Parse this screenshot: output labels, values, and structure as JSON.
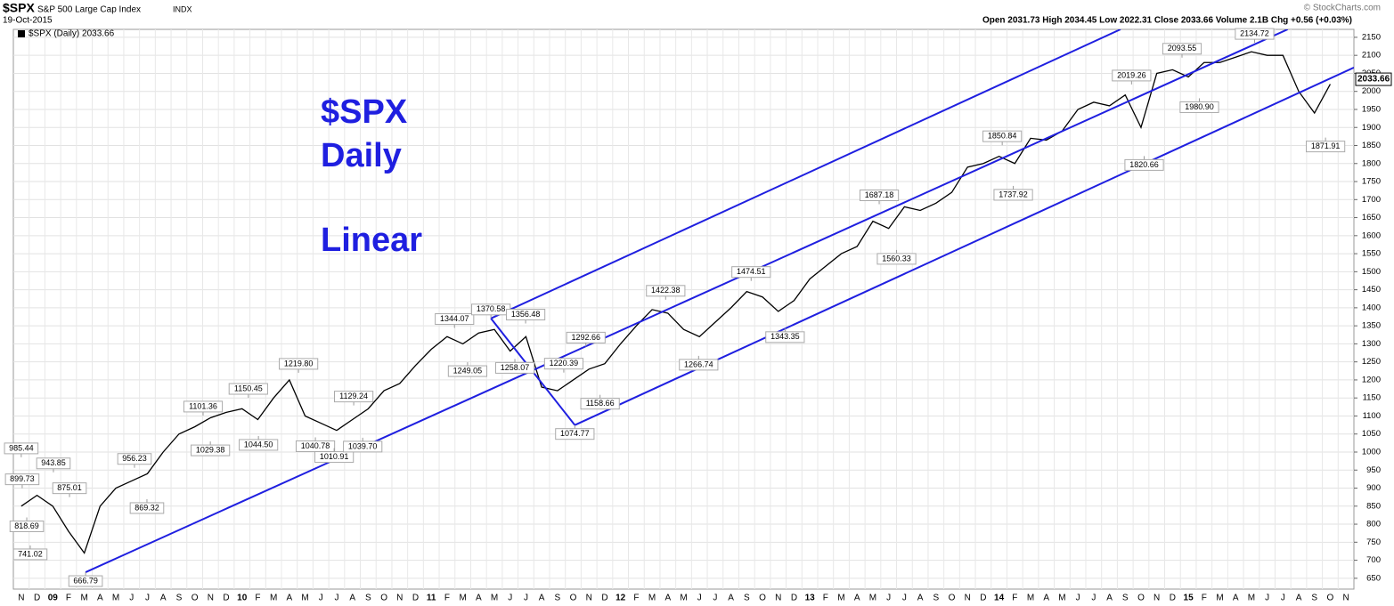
{
  "header": {
    "symbol": "$SPX",
    "name": "S&P 500 Large Cap Index",
    "exchange": "INDX",
    "date": "19-Oct-2015",
    "quote": "Open 2031.73  High 2034.45  Low 2022.31  Close 2033.66  Volume 2.1B  Chg +0.56 (+0.03%)",
    "credit": "© StockCharts.com"
  },
  "chart_data": {
    "type": "line",
    "legend": "$SPX (Daily) 2033.66",
    "last_price": {
      "value": 2033.66,
      "label": "2033.66"
    },
    "notes": [
      "$SPX",
      "Daily",
      "Linear"
    ],
    "categories": [
      "N",
      "D",
      "09",
      "F",
      "M",
      "A",
      "M",
      "J",
      "J",
      "A",
      "S",
      "O",
      "N",
      "D",
      "10",
      "F",
      "M",
      "A",
      "M",
      "J",
      "J",
      "A",
      "S",
      "O",
      "N",
      "D",
      "11",
      "F",
      "M",
      "A",
      "M",
      "J",
      "J",
      "A",
      "S",
      "O",
      "N",
      "D",
      "12",
      "F",
      "M",
      "A",
      "M",
      "J",
      "J",
      "A",
      "S",
      "O",
      "N",
      "D",
      "13",
      "F",
      "M",
      "A",
      "M",
      "J",
      "J",
      "A",
      "S",
      "O",
      "N",
      "D",
      "14",
      "F",
      "M",
      "A",
      "M",
      "J",
      "J",
      "A",
      "S",
      "O",
      "N",
      "D",
      "15",
      "F",
      "M",
      "A",
      "M",
      "J",
      "J",
      "A",
      "S",
      "O",
      "N"
    ],
    "series": [
      {
        "name": "$SPX",
        "color": "#000000",
        "values": [
          850,
          880,
          850,
          780,
          720,
          850,
          900,
          920,
          940,
          1000,
          1050,
          1070,
          1095,
          1110,
          1120,
          1090,
          1150,
          1200,
          1100,
          1080,
          1060,
          1090,
          1120,
          1170,
          1190,
          1240,
          1285,
          1320,
          1300,
          1330,
          1340,
          1280,
          1320,
          1180,
          1170,
          1200,
          1230,
          1245,
          1300,
          1350,
          1395,
          1385,
          1340,
          1320,
          1360,
          1400,
          1445,
          1430,
          1390,
          1420,
          1480,
          1515,
          1550,
          1570,
          1640,
          1620,
          1680,
          1670,
          1690,
          1720,
          1790,
          1800,
          1820,
          1800,
          1870,
          1865,
          1890,
          1950,
          1970,
          1960,
          1990,
          1900,
          2050,
          2060,
          2040,
          2080,
          2080,
          2095,
          2110,
          2100,
          2100,
          2000,
          1940,
          2020,
          null
        ]
      }
    ],
    "annotations": [
      {
        "text": "985.44",
        "x": 0,
        "value": 985.44
      },
      {
        "text": "899.73",
        "x": 0.06,
        "value": 899.73
      },
      {
        "text": "818.69",
        "x": 0.35,
        "value": 818.69
      },
      {
        "text": "741.02",
        "x": 0.57,
        "value": 741.02
      },
      {
        "text": "943.85",
        "x": 2.04,
        "value": 943.85
      },
      {
        "text": "875.01",
        "x": 3.06,
        "value": 875.01
      },
      {
        "text": "666.79",
        "x": 4.08,
        "value": 666.79
      },
      {
        "text": "956.23",
        "x": 7.18,
        "value": 956.23
      },
      {
        "text": "869.32",
        "x": 7.97,
        "value": 869.32
      },
      {
        "text": "1101.36",
        "x": 11.53,
        "value": 1101.36
      },
      {
        "text": "1029.38",
        "x": 11.99,
        "value": 1029.38
      },
      {
        "text": "1150.45",
        "x": 14.4,
        "value": 1150.45
      },
      {
        "text": "1044.50",
        "x": 15.04,
        "value": 1044.5
      },
      {
        "text": "1219.80",
        "x": 17.58,
        "value": 1219.8
      },
      {
        "text": "1040.78",
        "x": 18.65,
        "value": 1040.78
      },
      {
        "text": "1010.91",
        "x": 19.84,
        "value": 1010.91
      },
      {
        "text": "1129.24",
        "x": 21.08,
        "value": 1129.24
      },
      {
        "text": "1039.70",
        "x": 21.65,
        "value": 1039.7
      },
      {
        "text": "1344.07",
        "x": 27.47,
        "value": 1344.07
      },
      {
        "text": "1249.05",
        "x": 28.3,
        "value": 1249.05
      },
      {
        "text": "1370.58",
        "x": 29.78,
        "value": 1370.58
      },
      {
        "text": "1258.07",
        "x": 31.3,
        "value": 1258.07
      },
      {
        "text": "1356.48",
        "x": 31.98,
        "value": 1356.48
      },
      {
        "text": "1220.39",
        "x": 34.4,
        "value": 1220.39
      },
      {
        "text": "1074.77",
        "x": 35.1,
        "value": 1074.77
      },
      {
        "text": "1292.66",
        "x": 35.8,
        "value": 1292.66
      },
      {
        "text": "1158.66",
        "x": 36.7,
        "value": 1158.66
      },
      {
        "text": "1422.38",
        "x": 40.86,
        "value": 1422.38
      },
      {
        "text": "1266.74",
        "x": 42.95,
        "value": 1266.74
      },
      {
        "text": "1474.51",
        "x": 46.28,
        "value": 1474.51
      },
      {
        "text": "1343.35",
        "x": 48.43,
        "value": 1343.35
      },
      {
        "text": "1687.18",
        "x": 54.4,
        "value": 1687.18
      },
      {
        "text": "1560.33",
        "x": 55.5,
        "value": 1560.33
      },
      {
        "text": "1850.84",
        "x": 62.2,
        "value": 1850.84
      },
      {
        "text": "1737.92",
        "x": 62.9,
        "value": 1737.92
      },
      {
        "text": "2019.26",
        "x": 70.4,
        "value": 2019.26
      },
      {
        "text": "1820.66",
        "x": 71.2,
        "value": 1820.66
      },
      {
        "text": "2093.55",
        "x": 73.6,
        "value": 2093.55
      },
      {
        "text": "1980.90",
        "x": 74.7,
        "value": 1980.9
      },
      {
        "text": "2134.72",
        "x": 78.2,
        "value": 2134.72
      },
      {
        "text": "1871.91",
        "x": 82.7,
        "value": 1871.91
      }
    ],
    "trendlines": [
      {
        "x": [
          35.1,
          84.5
        ],
        "y": [
          1074.77,
          2066
        ]
      },
      {
        "x": [
          4.08,
          80.3
        ],
        "y": [
          666.79,
          2172
        ]
      },
      {
        "x": [
          29.78,
          69.7
        ],
        "y": [
          1370.58,
          2172
        ]
      },
      {
        "x": [
          29.78,
          35.1
        ],
        "y": [
          1370.58,
          1074.77
        ]
      }
    ],
    "trendline_color": "#1f1fe0",
    "ylim": [
      620,
      2172
    ],
    "yticks": [
      650,
      700,
      750,
      800,
      850,
      900,
      950,
      1000,
      1050,
      1100,
      1150,
      1200,
      1250,
      1300,
      1350,
      1400,
      1450,
      1500,
      1550,
      1600,
      1650,
      1700,
      1750,
      1800,
      1850,
      1900,
      1950,
      2000,
      2050,
      2100,
      2150
    ],
    "grid": true
  }
}
